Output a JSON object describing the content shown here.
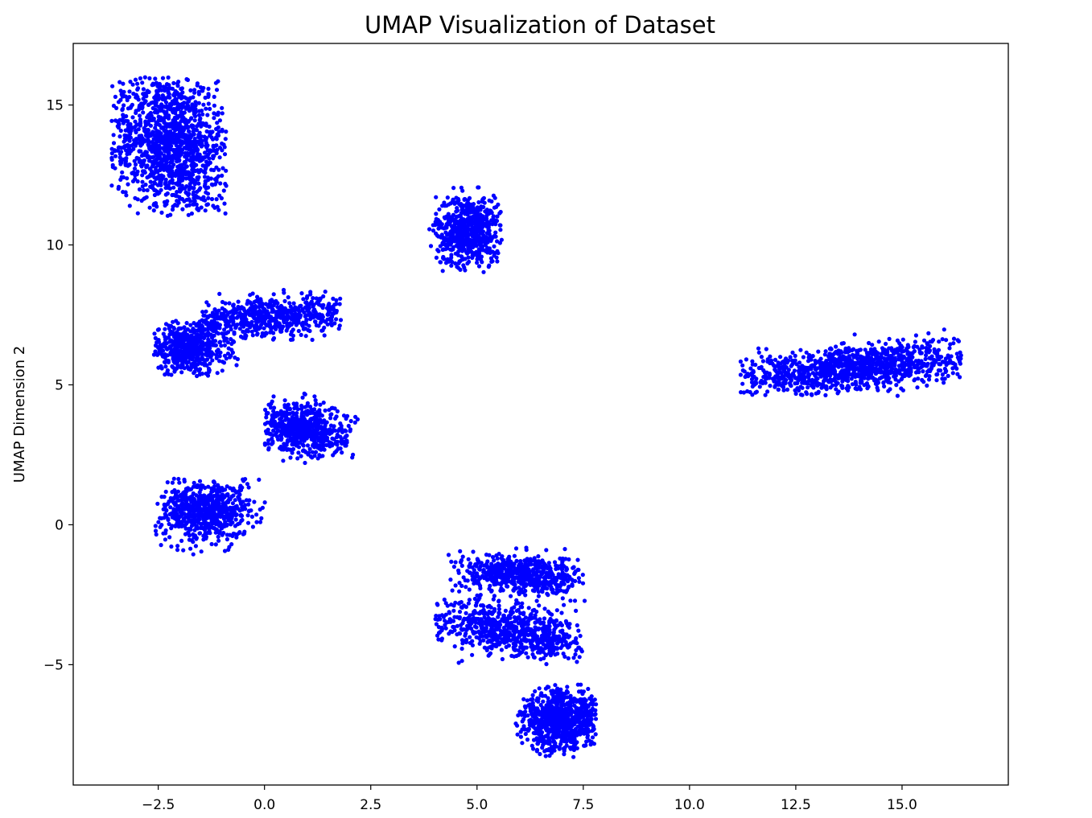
{
  "chart_data": {
    "type": "scatter",
    "title": "UMAP Visualization of Dataset",
    "xlabel": "",
    "ylabel": "UMAP Dimension 2",
    "xlim": [
      -4.5,
      17.5
    ],
    "ylim": [
      -9.3,
      17.2
    ],
    "x_ticks": [
      -2.5,
      0.0,
      2.5,
      5.0,
      7.5,
      10.0,
      12.5,
      15.0
    ],
    "x_tick_labels": [
      "−2.5",
      "0.0",
      "2.5",
      "5.0",
      "7.5",
      "10.0",
      "12.5",
      "15.0"
    ],
    "y_ticks": [
      -5,
      0,
      5,
      10,
      15
    ],
    "y_tick_labels": [
      "−5",
      "0",
      "5",
      "10",
      "15"
    ],
    "grid": false,
    "marker_color": "#0000ff",
    "clusters": [
      {
        "cx": -2.2,
        "cy": 13.6,
        "sx": 0.7,
        "sy": 1.3,
        "rot": 0.15,
        "n": 1300,
        "xr": [
          -3.6,
          -0.9
        ],
        "yr": [
          11.0,
          16.0
        ]
      },
      {
        "cx": 4.8,
        "cy": 10.5,
        "sx": 0.38,
        "sy": 0.65,
        "rot": 0.0,
        "n": 650,
        "xr": [
          3.7,
          5.6
        ],
        "yr": [
          9.0,
          12.1
        ]
      },
      {
        "cx": -1.8,
        "cy": 6.3,
        "sx": 0.45,
        "sy": 0.45,
        "rot": 0.0,
        "n": 550,
        "xr": [
          -2.6,
          -0.5
        ],
        "yr": [
          5.3,
          7.3
        ]
      },
      {
        "cx": 0.1,
        "cy": 7.4,
        "sx": 1.2,
        "sy": 0.32,
        "rot": 0.1,
        "n": 600,
        "xr": [
          -1.5,
          1.8
        ],
        "yr": [
          6.6,
          8.4
        ]
      },
      {
        "cx": 0.9,
        "cy": 3.4,
        "sx": 0.55,
        "sy": 0.45,
        "rot": -0.3,
        "n": 600,
        "xr": [
          0.0,
          2.2
        ],
        "yr": [
          2.2,
          5.0
        ]
      },
      {
        "cx": -1.4,
        "cy": 0.5,
        "sx": 0.55,
        "sy": 0.55,
        "rot": -0.4,
        "n": 650,
        "xr": [
          -2.6,
          0.4
        ],
        "yr": [
          -1.2,
          1.7
        ]
      },
      {
        "cx": 13.8,
        "cy": 5.6,
        "sx": 1.4,
        "sy": 0.4,
        "rot": 0.15,
        "n": 1100,
        "xr": [
          11.2,
          16.4
        ],
        "yr": [
          4.6,
          7.1
        ]
      },
      {
        "cx": 6.1,
        "cy": -1.8,
        "sx": 0.75,
        "sy": 0.35,
        "rot": -0.05,
        "n": 600,
        "xr": [
          4.3,
          7.6
        ],
        "yr": [
          -3.0,
          -0.8
        ]
      },
      {
        "cx": 5.9,
        "cy": -3.8,
        "sx": 1.0,
        "sy": 0.45,
        "rot": -0.3,
        "n": 700,
        "xr": [
          4.0,
          7.5
        ],
        "yr": [
          -5.0,
          -2.5
        ]
      },
      {
        "cx": 7.0,
        "cy": -7.0,
        "sx": 0.5,
        "sy": 0.55,
        "rot": 0.0,
        "n": 800,
        "xr": [
          5.9,
          7.8
        ],
        "yr": [
          -8.3,
          -5.7
        ]
      }
    ]
  }
}
